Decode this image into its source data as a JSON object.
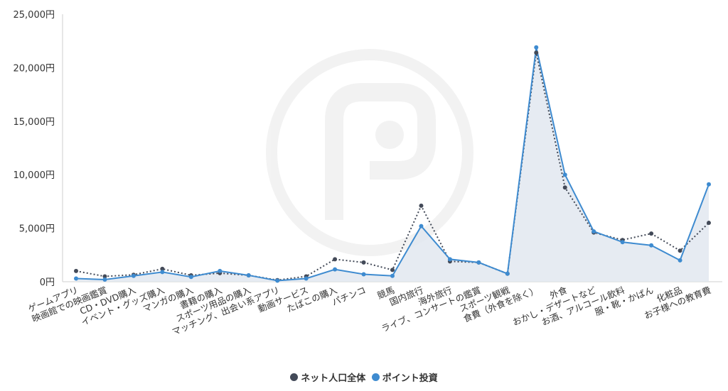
{
  "chart_data": {
    "type": "line",
    "title": "",
    "xlabel": "",
    "ylabel": "",
    "ylim": [
      0,
      25000
    ],
    "yticks": [
      "0円",
      "5,000円",
      "10,000円",
      "15,000円",
      "20,000円",
      "25,000円"
    ],
    "categories": [
      "ゲームアプリ",
      "映画館での映画鑑賞",
      "CD・DVD購入",
      "イベント・グッズ購入",
      "マンガの購入",
      "書籍の購入",
      "スポーツ用品の購入",
      "マッチング、出会い系アプリ",
      "動画サービス",
      "たばこの購入",
      "パチンコ",
      "競馬",
      "国内旅行",
      "海外旅行",
      "ライブ、コンサートの鑑賞",
      "スポーツ観戦",
      "食費（外食を除く）",
      "外食",
      "おかし・デザートなど",
      "お酒、アルコール飲料",
      "服・靴・かばん",
      "化粧品",
      "お子様への教育費"
    ],
    "series": [
      {
        "name": "ネット人口全体",
        "color": "#434a58",
        "style": "dotted",
        "values": [
          1000,
          500,
          650,
          1200,
          600,
          800,
          600,
          150,
          500,
          2100,
          1800,
          1100,
          7100,
          1900,
          1800,
          750,
          21400,
          8800,
          4600,
          3900,
          4500,
          2900,
          5500
        ]
      },
      {
        "name": "ポイント投資",
        "color": "#3e8bd0",
        "style": "solid",
        "values": [
          300,
          200,
          550,
          900,
          450,
          1000,
          600,
          100,
          300,
          1150,
          700,
          550,
          5200,
          2100,
          1800,
          750,
          21900,
          10000,
          4700,
          3700,
          3400,
          2000,
          9100
        ]
      }
    ],
    "grid": false,
    "legend_position": "bottom"
  },
  "legend": [
    {
      "label": "ネット人口全体",
      "color": "#434a58"
    },
    {
      "label": "ポイント投資",
      "color": "#3e8bd0"
    }
  ]
}
